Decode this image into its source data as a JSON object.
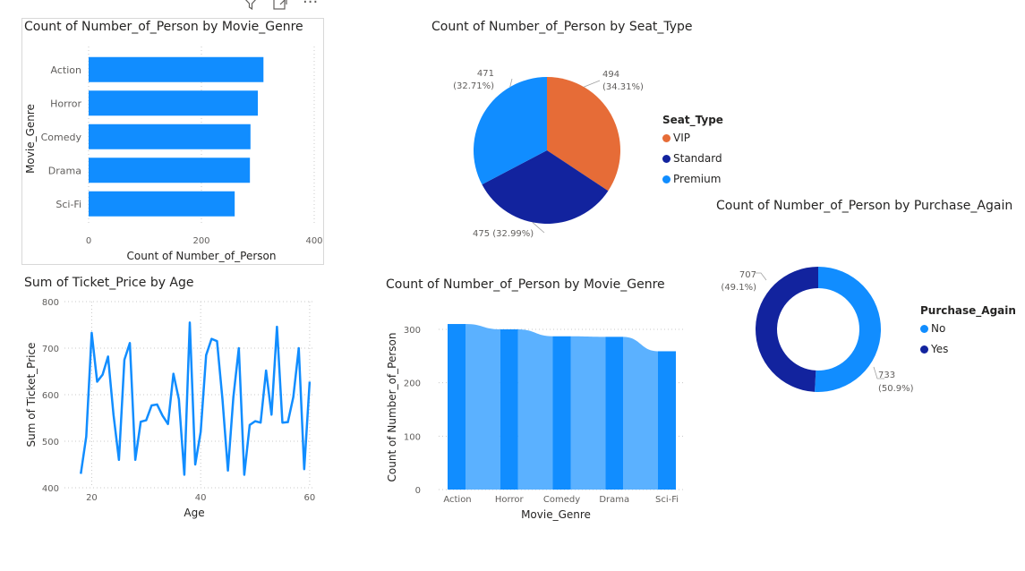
{
  "toolbar": {
    "filter_icon": "filter-icon",
    "focus_icon": "focus-mode-icon",
    "more_icon": "more-options-icon",
    "more_label": "···"
  },
  "charts": {
    "genre_bar": {
      "title": "Count of Number_of_Person by Movie_Genre"
    },
    "seat_pie": {
      "title": "Count of Number_of_Person by Seat_Type",
      "legend_title": "Seat_Type"
    },
    "purchase_donut": {
      "title": "Count of Number_of_Person by Purchase_Again",
      "legend_title": "Purchase_Again"
    },
    "ticket_line": {
      "title": "Sum of Ticket_Price by Age"
    },
    "genre_area": {
      "title": "Count of Number_of_Person by Movie_Genre"
    }
  },
  "colors": {
    "blue": "#118dff",
    "navy": "#12239e",
    "orange": "#e66c37",
    "light_blue": "#5bb1ff"
  },
  "chart_data": [
    {
      "id": "genre_bar",
      "type": "bar",
      "orientation": "horizontal",
      "title": "Count of Number_of_Person by Movie_Genre",
      "categories": [
        "Action",
        "Horror",
        "Comedy",
        "Drama",
        "Sci-Fi"
      ],
      "values": [
        310,
        300,
        287,
        286,
        259
      ],
      "xlabel": "Count of Number_of_Person",
      "ylabel": "Movie_Genre",
      "xlim": [
        0,
        400
      ],
      "xticks": [
        "0",
        "200",
        "400"
      ],
      "color": "#118dff"
    },
    {
      "id": "seat_pie",
      "type": "pie",
      "title": "Count of Number_of_Person by Seat_Type",
      "legend_title": "Seat_Type",
      "legend_position": "right",
      "slices": [
        {
          "label": "VIP",
          "value": 494,
          "pct": "34.31%",
          "color": "#e66c37"
        },
        {
          "label": "Standard",
          "value": 475,
          "pct": "32.99%",
          "color": "#12239e"
        },
        {
          "label": "Premium",
          "value": 471,
          "pct": "32.71%",
          "color": "#118dff"
        }
      ],
      "data_labels": [
        "494",
        "(34.31%)",
        "475 (32.99%)",
        "471",
        "(32.71%)"
      ]
    },
    {
      "id": "purchase_donut",
      "type": "pie",
      "variant": "donut",
      "title": "Count of Number_of_Person by Purchase_Again",
      "legend_title": "Purchase_Again",
      "legend_position": "right",
      "slices": [
        {
          "label": "No",
          "value": 733,
          "pct": "50.9%",
          "color": "#118dff"
        },
        {
          "label": "Yes",
          "value": 707,
          "pct": "49.1%",
          "color": "#12239e"
        }
      ],
      "data_labels": [
        "733",
        "(50.9%)",
        "707",
        "(49.1%)"
      ]
    },
    {
      "id": "ticket_line",
      "type": "line",
      "title": "Sum of Ticket_Price by Age",
      "xlabel": "Age",
      "ylabel": "Sum of Ticket_Price",
      "xlim": [
        15,
        61
      ],
      "ylim": [
        400,
        800
      ],
      "xticks": [
        "20",
        "40",
        "60"
      ],
      "yticks": [
        "400",
        "500",
        "600",
        "700",
        "800"
      ],
      "color": "#118dff",
      "x": [
        18,
        19,
        20,
        21,
        22,
        23,
        24,
        25,
        26,
        27,
        28,
        29,
        30,
        31,
        32,
        33,
        34,
        35,
        36,
        37,
        38,
        39,
        40,
        41,
        42,
        43,
        44,
        45,
        46,
        47,
        48,
        49,
        50,
        51,
        52,
        53,
        54,
        55,
        56,
        57,
        58,
        59,
        60
      ],
      "y": [
        430,
        510,
        733,
        628,
        643,
        682,
        557,
        460,
        675,
        711,
        460,
        542,
        545,
        577,
        579,
        555,
        537,
        645,
        590,
        428,
        755,
        450,
        520,
        685,
        720,
        715,
        590,
        437,
        595,
        700,
        428,
        535,
        543,
        540,
        652,
        557,
        746,
        540,
        541,
        595,
        700,
        440,
        628
      ]
    },
    {
      "id": "genre_area",
      "type": "area",
      "title": "Count of Number_of_Person by Movie_Genre",
      "categories": [
        "Action",
        "Horror",
        "Comedy",
        "Drama",
        "Sci-Fi"
      ],
      "values": [
        310,
        300,
        287,
        286,
        259
      ],
      "xlabel": "Movie_Genre",
      "ylabel": "Count of Number_of_Person",
      "ylim": [
        0,
        320
      ],
      "yticks": [
        "0",
        "100",
        "200",
        "300"
      ],
      "color": "#118dff"
    }
  ]
}
